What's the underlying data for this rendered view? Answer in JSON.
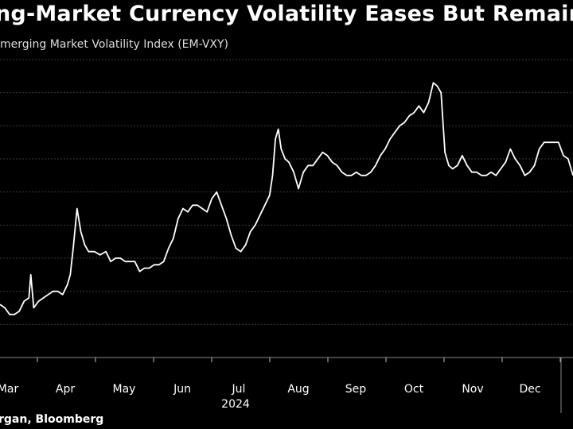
{
  "title": "ng-Market Currency Volatility Eases But Remain",
  "legend_label": "merging Market Volatility Index (EM-VXY)",
  "source": "rgan, Bloomberg",
  "colors": {
    "background": "#000000",
    "line": "#ffffff",
    "grid": "#3a3a3a",
    "text": "#ffffff"
  },
  "chart_data": {
    "type": "line",
    "title": "ng-Market Currency Volatility Eases But Remain",
    "legend": [
      "merging Market Volatility Index (EM-VXY)"
    ],
    "x_ticks": [
      "Mar",
      "Apr",
      "May",
      "Jun",
      "Jul",
      "Aug",
      "Sep",
      "Oct",
      "Nov",
      "Dec"
    ],
    "x_year_label": "2024",
    "y_range": [
      0,
      9
    ],
    "grid": "horizontal",
    "series": [
      {
        "values": [
          [
            0.0,
            1.6
          ],
          [
            0.5,
            1.5
          ],
          [
            1.0,
            1.3
          ],
          [
            1.5,
            1.3
          ],
          [
            2.0,
            1.4
          ],
          [
            2.5,
            1.7
          ],
          [
            3.0,
            1.8
          ],
          [
            3.2,
            2.5
          ],
          [
            3.5,
            1.5
          ],
          [
            4.0,
            1.7
          ],
          [
            4.5,
            1.8
          ],
          [
            5.0,
            1.9
          ],
          [
            5.5,
            2.0
          ],
          [
            6.0,
            2.0
          ],
          [
            6.5,
            1.9
          ],
          [
            7.0,
            2.2
          ],
          [
            7.3,
            2.5
          ],
          [
            7.6,
            3.3
          ],
          [
            8.0,
            4.5
          ],
          [
            8.4,
            3.8
          ],
          [
            8.8,
            3.4
          ],
          [
            9.2,
            3.2
          ],
          [
            9.8,
            3.2
          ],
          [
            10.4,
            3.1
          ],
          [
            11.0,
            3.2
          ],
          [
            11.5,
            2.9
          ],
          [
            12.0,
            3.0
          ],
          [
            12.5,
            3.0
          ],
          [
            13.0,
            2.9
          ],
          [
            13.5,
            2.9
          ],
          [
            14.0,
            2.9
          ],
          [
            14.5,
            2.6
          ],
          [
            15.0,
            2.7
          ],
          [
            15.5,
            2.7
          ],
          [
            16.0,
            2.8
          ],
          [
            16.5,
            2.8
          ],
          [
            17.0,
            2.9
          ],
          [
            17.5,
            3.3
          ],
          [
            18.0,
            3.6
          ],
          [
            18.5,
            4.2
          ],
          [
            19.0,
            4.5
          ],
          [
            19.5,
            4.4
          ],
          [
            20.0,
            4.6
          ],
          [
            20.5,
            4.6
          ],
          [
            21.0,
            4.5
          ],
          [
            21.5,
            4.4
          ],
          [
            22.0,
            4.8
          ],
          [
            22.5,
            5.0
          ],
          [
            23.0,
            4.6
          ],
          [
            23.5,
            4.2
          ],
          [
            24.0,
            3.7
          ],
          [
            24.5,
            3.3
          ],
          [
            25.0,
            3.2
          ],
          [
            25.5,
            3.4
          ],
          [
            26.0,
            3.8
          ],
          [
            26.5,
            4.0
          ],
          [
            27.0,
            4.3
          ],
          [
            27.5,
            4.6
          ],
          [
            28.0,
            4.9
          ],
          [
            28.3,
            5.5
          ],
          [
            28.6,
            6.6
          ],
          [
            28.9,
            6.9
          ],
          [
            29.2,
            6.3
          ],
          [
            29.6,
            6.0
          ],
          [
            30.0,
            5.9
          ],
          [
            30.5,
            5.6
          ],
          [
            31.0,
            5.1
          ],
          [
            31.5,
            5.6
          ],
          [
            32.0,
            5.8
          ],
          [
            32.5,
            5.8
          ],
          [
            33.0,
            6.0
          ],
          [
            33.5,
            6.2
          ],
          [
            34.0,
            6.1
          ],
          [
            34.5,
            5.9
          ],
          [
            35.0,
            5.8
          ],
          [
            35.5,
            5.6
          ],
          [
            36.0,
            5.5
          ],
          [
            36.5,
            5.5
          ],
          [
            37.0,
            5.6
          ],
          [
            37.5,
            5.5
          ],
          [
            38.0,
            5.5
          ],
          [
            38.5,
            5.6
          ],
          [
            39.0,
            5.8
          ],
          [
            39.5,
            6.1
          ],
          [
            40.0,
            6.3
          ],
          [
            40.5,
            6.6
          ],
          [
            41.0,
            6.8
          ],
          [
            41.5,
            7.0
          ],
          [
            42.0,
            7.1
          ],
          [
            42.5,
            7.3
          ],
          [
            43.0,
            7.4
          ],
          [
            43.5,
            7.6
          ],
          [
            44.0,
            7.4
          ],
          [
            44.5,
            7.7
          ],
          [
            45.0,
            8.3
          ],
          [
            45.4,
            8.2
          ],
          [
            45.8,
            8.0
          ],
          [
            46.2,
            6.2
          ],
          [
            46.6,
            5.8
          ],
          [
            47.0,
            5.7
          ],
          [
            47.5,
            5.8
          ],
          [
            48.0,
            6.1
          ],
          [
            48.5,
            5.8
          ],
          [
            49.0,
            5.6
          ],
          [
            49.5,
            5.6
          ],
          [
            50.0,
            5.5
          ],
          [
            50.5,
            5.5
          ],
          [
            51.0,
            5.6
          ],
          [
            51.5,
            5.5
          ],
          [
            52.0,
            5.7
          ],
          [
            52.5,
            5.9
          ],
          [
            53.0,
            6.3
          ],
          [
            53.5,
            6.0
          ],
          [
            54.0,
            5.8
          ],
          [
            54.5,
            5.5
          ],
          [
            55.0,
            5.6
          ],
          [
            55.5,
            5.8
          ],
          [
            56.0,
            6.3
          ],
          [
            56.5,
            6.5
          ],
          [
            57.0,
            6.5
          ],
          [
            57.5,
            6.5
          ],
          [
            58.0,
            6.5
          ],
          [
            58.5,
            6.1
          ],
          [
            59.0,
            6.0
          ],
          [
            59.5,
            5.5
          ]
        ]
      }
    ]
  }
}
